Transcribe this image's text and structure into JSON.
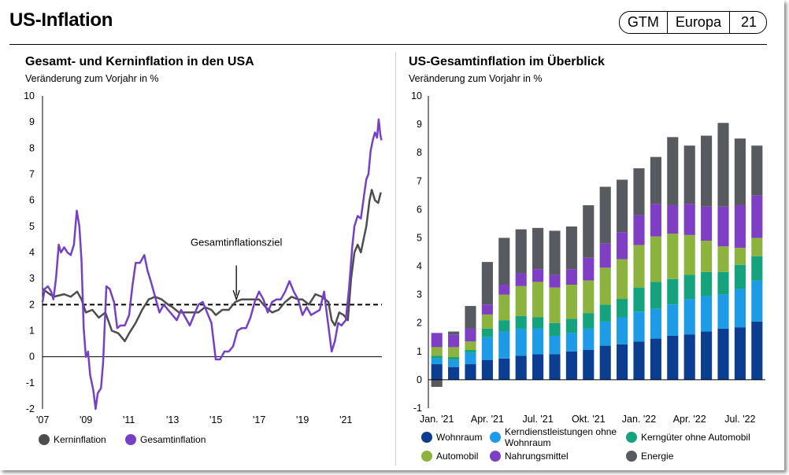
{
  "header": {
    "title": "US-Inflation",
    "tags": [
      "GTM",
      "Europa",
      "21"
    ]
  },
  "chart_data": [
    {
      "type": "line",
      "title": "Gesamt- und Kerninflation in den USA",
      "subtitle": "Veränderung zum Vorjahr in %",
      "ylim": [
        -2,
        10
      ],
      "yticks": [
        "10",
        "9",
        "8",
        "7",
        "6",
        "5",
        "4",
        "3",
        "2",
        "1",
        "0",
        "-1",
        "-2"
      ],
      "xlim": [
        2007.0,
        2022.67
      ],
      "xticks": [
        {
          "x": 2007,
          "label": "'07"
        },
        {
          "x": 2009,
          "label": "'09"
        },
        {
          "x": 2011,
          "label": "'11"
        },
        {
          "x": 2013,
          "label": "'13"
        },
        {
          "x": 2015,
          "label": "'15"
        },
        {
          "x": 2017,
          "label": "'17"
        },
        {
          "x": 2019,
          "label": "'19"
        },
        {
          "x": 2021,
          "label": "'21"
        }
      ],
      "reference_line": {
        "y": 2,
        "label": "Gesamtinflationsziel",
        "style": "dashed"
      },
      "series": [
        {
          "name": "Kerninflation",
          "color": "#4d4d4d",
          "points": [
            [
              2007.0,
              2.6
            ],
            [
              2007.5,
              2.3
            ],
            [
              2008.0,
              2.4
            ],
            [
              2008.3,
              2.3
            ],
            [
              2008.6,
              2.5
            ],
            [
              2008.8,
              2.2
            ],
            [
              2009.0,
              1.7
            ],
            [
              2009.3,
              1.8
            ],
            [
              2009.6,
              1.5
            ],
            [
              2009.9,
              1.7
            ],
            [
              2010.2,
              1.0
            ],
            [
              2010.5,
              0.9
            ],
            [
              2010.8,
              0.6
            ],
            [
              2011.0,
              0.9
            ],
            [
              2011.3,
              1.3
            ],
            [
              2011.6,
              1.8
            ],
            [
              2011.9,
              2.2
            ],
            [
              2012.2,
              2.3
            ],
            [
              2012.5,
              2.2
            ],
            [
              2012.8,
              2.0
            ],
            [
              2013.0,
              1.9
            ],
            [
              2013.3,
              1.7
            ],
            [
              2013.6,
              1.7
            ],
            [
              2013.9,
              1.7
            ],
            [
              2014.2,
              1.7
            ],
            [
              2014.5,
              1.9
            ],
            [
              2014.8,
              1.8
            ],
            [
              2015.0,
              1.6
            ],
            [
              2015.3,
              1.8
            ],
            [
              2015.6,
              1.8
            ],
            [
              2015.9,
              2.1
            ],
            [
              2016.2,
              2.2
            ],
            [
              2016.5,
              2.2
            ],
            [
              2016.8,
              2.2
            ],
            [
              2017.0,
              2.2
            ],
            [
              2017.3,
              1.9
            ],
            [
              2017.6,
              1.7
            ],
            [
              2017.9,
              1.8
            ],
            [
              2018.2,
              2.1
            ],
            [
              2018.5,
              2.3
            ],
            [
              2018.8,
              2.2
            ],
            [
              2019.0,
              2.2
            ],
            [
              2019.3,
              2.0
            ],
            [
              2019.6,
              2.4
            ],
            [
              2019.9,
              2.3
            ],
            [
              2020.2,
              2.1
            ],
            [
              2020.35,
              1.4
            ],
            [
              2020.5,
              1.2
            ],
            [
              2020.7,
              1.7
            ],
            [
              2020.9,
              1.6
            ],
            [
              2021.1,
              1.4
            ],
            [
              2021.25,
              3.0
            ],
            [
              2021.4,
              4.0
            ],
            [
              2021.55,
              4.3
            ],
            [
              2021.7,
              4.0
            ],
            [
              2021.85,
              4.6
            ],
            [
              2021.95,
              5.0
            ],
            [
              2022.1,
              6.0
            ],
            [
              2022.2,
              6.4
            ],
            [
              2022.35,
              6.0
            ],
            [
              2022.5,
              5.9
            ],
            [
              2022.62,
              6.3
            ]
          ]
        },
        {
          "name": "Gesamtinflation",
          "color": "#7540c6",
          "points": [
            [
              2007.0,
              2.1
            ],
            [
              2007.1,
              2.6
            ],
            [
              2007.25,
              2.7
            ],
            [
              2007.4,
              2.5
            ],
            [
              2007.5,
              2.2
            ],
            [
              2007.62,
              3.0
            ],
            [
              2007.75,
              4.3
            ],
            [
              2007.85,
              4.0
            ],
            [
              2008.0,
              4.2
            ],
            [
              2008.15,
              4.0
            ],
            [
              2008.3,
              3.9
            ],
            [
              2008.45,
              4.3
            ],
            [
              2008.58,
              5.6
            ],
            [
              2008.7,
              5.0
            ],
            [
              2008.8,
              3.7
            ],
            [
              2008.9,
              1.1
            ],
            [
              2009.0,
              0.0
            ],
            [
              2009.1,
              0.2
            ],
            [
              2009.2,
              -0.7
            ],
            [
              2009.35,
              -1.3
            ],
            [
              2009.45,
              -2.0
            ],
            [
              2009.55,
              -1.4
            ],
            [
              2009.7,
              -1.2
            ],
            [
              2009.8,
              -0.2
            ],
            [
              2009.95,
              2.7
            ],
            [
              2010.1,
              2.6
            ],
            [
              2010.3,
              2.1
            ],
            [
              2010.45,
              1.1
            ],
            [
              2010.6,
              1.2
            ],
            [
              2010.8,
              1.2
            ],
            [
              2011.0,
              1.6
            ],
            [
              2011.15,
              2.7
            ],
            [
              2011.3,
              3.6
            ],
            [
              2011.5,
              3.6
            ],
            [
              2011.7,
              3.9
            ],
            [
              2011.85,
              3.3
            ],
            [
              2012.0,
              2.9
            ],
            [
              2012.2,
              2.3
            ],
            [
              2012.4,
              1.7
            ],
            [
              2012.6,
              2.0
            ],
            [
              2012.8,
              1.8
            ],
            [
              2013.0,
              1.6
            ],
            [
              2013.2,
              1.4
            ],
            [
              2013.4,
              1.8
            ],
            [
              2013.6,
              1.5
            ],
            [
              2013.8,
              1.2
            ],
            [
              2014.0,
              1.6
            ],
            [
              2014.2,
              2.0
            ],
            [
              2014.4,
              2.1
            ],
            [
              2014.6,
              1.7
            ],
            [
              2014.8,
              1.3
            ],
            [
              2015.0,
              -0.1
            ],
            [
              2015.2,
              -0.1
            ],
            [
              2015.4,
              0.2
            ],
            [
              2015.6,
              0.2
            ],
            [
              2015.8,
              0.4
            ],
            [
              2016.0,
              1.0
            ],
            [
              2016.2,
              1.1
            ],
            [
              2016.4,
              1.1
            ],
            [
              2016.6,
              1.5
            ],
            [
              2016.8,
              2.1
            ],
            [
              2017.0,
              2.5
            ],
            [
              2017.2,
              2.2
            ],
            [
              2017.4,
              1.7
            ],
            [
              2017.6,
              2.1
            ],
            [
              2017.8,
              2.2
            ],
            [
              2018.0,
              2.2
            ],
            [
              2018.2,
              2.5
            ],
            [
              2018.4,
              2.9
            ],
            [
              2018.6,
              2.5
            ],
            [
              2018.8,
              2.2
            ],
            [
              2019.0,
              1.6
            ],
            [
              2019.2,
              1.9
            ],
            [
              2019.4,
              1.6
            ],
            [
              2019.6,
              1.7
            ],
            [
              2019.8,
              1.8
            ],
            [
              2020.0,
              2.5
            ],
            [
              2020.15,
              1.5
            ],
            [
              2020.35,
              0.2
            ],
            [
              2020.5,
              0.6
            ],
            [
              2020.65,
              1.3
            ],
            [
              2020.8,
              1.2
            ],
            [
              2021.0,
              1.4
            ],
            [
              2021.15,
              2.6
            ],
            [
              2021.3,
              4.2
            ],
            [
              2021.4,
              5.0
            ],
            [
              2021.55,
              5.4
            ],
            [
              2021.7,
              5.3
            ],
            [
              2021.85,
              6.2
            ],
            [
              2021.95,
              6.8
            ],
            [
              2022.05,
              7.0
            ],
            [
              2022.15,
              7.9
            ],
            [
              2022.25,
              8.3
            ],
            [
              2022.35,
              8.6
            ],
            [
              2022.45,
              8.4
            ],
            [
              2022.52,
              9.1
            ],
            [
              2022.6,
              8.5
            ],
            [
              2022.65,
              8.3
            ]
          ]
        }
      ],
      "legend": [
        {
          "label": "Kerninflation",
          "color": "#4d4d4d"
        },
        {
          "label": "Gesamtinflation",
          "color": "#7540c6"
        }
      ]
    },
    {
      "type": "bar",
      "stacked": true,
      "title": "US-Gesamtinflation im Überblick",
      "subtitle": "Veränderung zum Vorjahr in %",
      "ylim": [
        -1,
        10
      ],
      "yticks": [
        "10",
        "9",
        "8",
        "7",
        "6",
        "5",
        "4",
        "3",
        "2",
        "1",
        "0",
        "-1"
      ],
      "xtick_labels": [
        {
          "index": 0,
          "label": "Jan. '21"
        },
        {
          "index": 3,
          "label": "Apr. '21"
        },
        {
          "index": 6,
          "label": "Jul. '21"
        },
        {
          "index": 9,
          "label": "Okt. '21"
        },
        {
          "index": 12,
          "label": "Jan. '22"
        },
        {
          "index": 15,
          "label": "Apr. '22"
        },
        {
          "index": 18,
          "label": "Jul. '22"
        }
      ],
      "categories": [
        "Jan. '21",
        "Feb. '21",
        "Mär. '21",
        "Apr. '21",
        "Mai '21",
        "Jun. '21",
        "Jul. '21",
        "Aug. '21",
        "Sep. '21",
        "Okt. '21",
        "Nov. '21",
        "Dez. '21",
        "Jan. '22",
        "Feb. '22",
        "Mär. '22",
        "Apr. '22",
        "Mai '22",
        "Jun. '22",
        "Jul. '22",
        "Aug. '22"
      ],
      "series": [
        {
          "name": "Wohnraum",
          "color": "#0b3d91",
          "values": [
            0.55,
            0.45,
            0.55,
            0.7,
            0.75,
            0.85,
            0.9,
            0.9,
            1.0,
            1.05,
            1.2,
            1.25,
            1.35,
            1.45,
            1.55,
            1.6,
            1.7,
            1.8,
            1.85,
            2.05
          ]
        },
        {
          "name": "Kerndienstleistungen ohne Wohnraum",
          "color": "#1e9be6",
          "values": [
            0.2,
            0.25,
            0.4,
            0.8,
            0.95,
            0.95,
            0.9,
            0.65,
            0.65,
            0.75,
            0.85,
            0.95,
            1.05,
            1.05,
            1.1,
            1.25,
            1.25,
            1.2,
            1.35,
            1.45
          ]
        },
        {
          "name": "Kerngüter ohne Automobil",
          "color": "#14a37c",
          "values": [
            0.1,
            0.1,
            0.1,
            0.3,
            0.4,
            0.45,
            0.4,
            0.45,
            0.5,
            0.55,
            0.6,
            0.65,
            0.85,
            0.95,
            0.9,
            0.85,
            0.85,
            0.8,
            0.85,
            0.85
          ]
        },
        {
          "name": "Automobil",
          "color": "#8db33f",
          "values": [
            0.3,
            0.35,
            0.3,
            0.5,
            0.9,
            1.05,
            1.25,
            1.25,
            1.2,
            1.15,
            1.3,
            1.4,
            1.5,
            1.6,
            1.6,
            1.4,
            1.1,
            0.9,
            0.6,
            0.65
          ]
        },
        {
          "name": "Nahrungsmittel",
          "color": "#7e3fc4",
          "values": [
            0.5,
            0.45,
            0.45,
            0.35,
            0.35,
            0.45,
            0.45,
            0.45,
            0.55,
            0.8,
            0.85,
            0.95,
            1.05,
            1.15,
            1.0,
            1.1,
            1.2,
            1.4,
            1.5,
            1.5
          ]
        },
        {
          "name": "Energie",
          "color": "#575a5e",
          "values": [
            -0.25,
            0.1,
            0.8,
            1.5,
            1.65,
            1.55,
            1.45,
            1.55,
            1.5,
            1.85,
            2.0,
            1.85,
            1.65,
            1.65,
            2.4,
            2.05,
            2.5,
            2.95,
            2.35,
            1.75
          ]
        }
      ],
      "legend": [
        {
          "label": "Wohnraum",
          "color": "#0b3d91"
        },
        {
          "label": "Kerndienstleistungen ohne Wohnraum",
          "color": "#1e9be6"
        },
        {
          "label": "Kerngüter ohne Automobil",
          "color": "#14a37c"
        },
        {
          "label": "Automobil",
          "color": "#8db33f"
        },
        {
          "label": "Nahrungsmittel",
          "color": "#7e3fc4"
        },
        {
          "label": "Energie",
          "color": "#575a5e"
        }
      ]
    }
  ]
}
